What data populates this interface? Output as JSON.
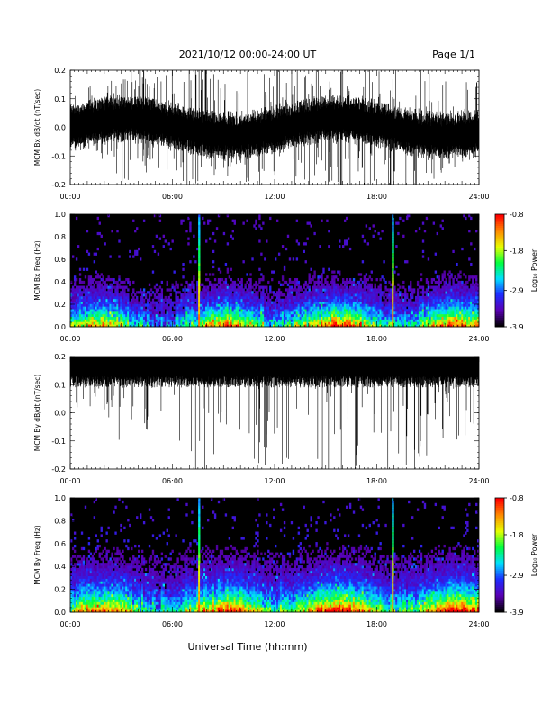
{
  "header": {
    "title": "2021/10/12  00:00-24:00 UT",
    "page": "Page 1/1"
  },
  "footer": {
    "xlabel": "Universal Time (hh:mm)"
  },
  "colors": {
    "trace": "#000000",
    "background": "#ffffff"
  },
  "chart_data": [
    {
      "type": "line",
      "ylabel": "MCM Bx dB/dt (nT/sec)",
      "ylim": [
        -0.2,
        0.2
      ],
      "xlim": [
        0,
        24
      ],
      "x_ticks": [
        "00:00",
        "06:00",
        "12:00",
        "18:00",
        "24:00"
      ],
      "y_ticks": [
        "-0.2",
        "-0.1",
        "0.0",
        "0.1",
        "0.2"
      ],
      "envelope_times_h": [
        0,
        2,
        3,
        4,
        5,
        6,
        7,
        8,
        9,
        10,
        12,
        14,
        16,
        18,
        20,
        22,
        24
      ],
      "envelope_upper": [
        0.1,
        0.12,
        0.2,
        0.18,
        0.16,
        0.16,
        0.2,
        0.2,
        0.14,
        0.15,
        0.2,
        0.2,
        0.2,
        0.2,
        0.2,
        0.15,
        0.12
      ],
      "envelope_lower": [
        -0.05,
        -0.08,
        -0.18,
        -0.12,
        -0.1,
        -0.12,
        -0.2,
        -0.2,
        -0.12,
        -0.15,
        -0.2,
        -0.2,
        -0.2,
        -0.2,
        -0.2,
        -0.12,
        -0.08
      ]
    },
    {
      "type": "heatmap",
      "ylabel": "MCM Bx Freq (Hz)",
      "ylim": [
        0.0,
        1.0
      ],
      "xlim": [
        0,
        24
      ],
      "x_ticks": [
        "00:00",
        "06:00",
        "12:00",
        "18:00",
        "24:00"
      ],
      "y_ticks": [
        "0.0",
        "0.2",
        "0.4",
        "0.6",
        "0.8",
        "1.0"
      ],
      "colorbar": {
        "label": "Log₁₀ Power",
        "min": -3.9,
        "max": -0.8,
        "ticks": [
          "-0.8",
          "-1.8",
          "-2.9",
          "-3.9"
        ]
      },
      "colormap": [
        "#000000",
        "#5a00b4",
        "#1e2cff",
        "#00e0ff",
        "#00ff40",
        "#e6ff00",
        "#ff8c00",
        "#ff0000"
      ],
      "strong_times_h": [
        7.55,
        18.9
      ]
    },
    {
      "type": "line",
      "ylabel": "MCM By dB/dt (nT/sec)",
      "ylim": [
        -0.2,
        0.2
      ],
      "xlim": [
        0,
        24
      ],
      "x_ticks": [
        "00:00",
        "06:00",
        "12:00",
        "18:00",
        "24:00"
      ],
      "y_ticks": [
        "-0.2",
        "-0.1",
        "0.0",
        "0.1",
        "0.2"
      ],
      "baseline": 0.15,
      "envelope_times_h": [
        0,
        2,
        3,
        4,
        5,
        6,
        7,
        8,
        9,
        10,
        12,
        14,
        16,
        18,
        20,
        22,
        24
      ],
      "envelope_lower": [
        0.07,
        0.05,
        -0.15,
        -0.05,
        -0.1,
        -0.05,
        -0.18,
        -0.2,
        -0.05,
        -0.1,
        -0.2,
        -0.15,
        -0.2,
        -0.2,
        -0.2,
        -0.1,
        0.0
      ]
    },
    {
      "type": "heatmap",
      "ylabel": "MCM By Freq (Hz)",
      "ylim": [
        0.0,
        1.0
      ],
      "xlim": [
        0,
        24
      ],
      "x_ticks": [
        "00:00",
        "06:00",
        "12:00",
        "18:00",
        "24:00"
      ],
      "y_ticks": [
        "0.0",
        "0.2",
        "0.4",
        "0.6",
        "0.8",
        "1.0"
      ],
      "colorbar": {
        "label": "Log₁₀ Power",
        "min": -3.9,
        "max": -0.8,
        "ticks": [
          "-0.8",
          "-1.8",
          "-2.9",
          "-3.9"
        ]
      },
      "colormap": [
        "#000000",
        "#5a00b4",
        "#1e2cff",
        "#00e0ff",
        "#00ff40",
        "#e6ff00",
        "#ff8c00",
        "#ff0000"
      ],
      "strong_times_h": [
        7.55,
        18.9
      ]
    }
  ]
}
